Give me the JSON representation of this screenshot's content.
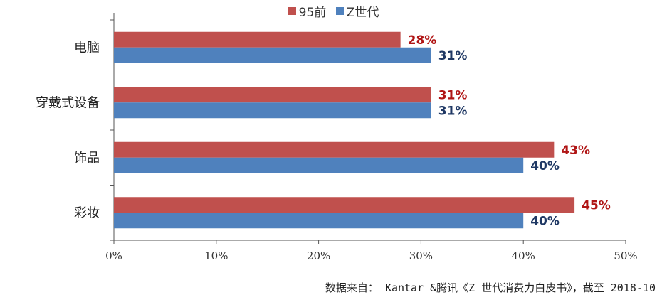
{
  "chart_data": {
    "type": "bar",
    "orientation": "horizontal",
    "categories": [
      "电脑",
      "穿戴式设备",
      "饰品",
      "彩妆"
    ],
    "series": [
      {
        "name": "95前",
        "values": [
          28,
          31,
          43,
          45
        ],
        "labels": [
          "28%",
          "31%",
          "43%",
          "45%"
        ],
        "color": "#c0504d",
        "label_color": "#b01515"
      },
      {
        "name": "Z世代",
        "values": [
          31,
          31,
          40,
          40
        ],
        "labels": [
          "31%",
          "31%",
          "40%",
          "40%"
        ],
        "color": "#4f81bd",
        "label_color": "#1f3864"
      }
    ],
    "x_ticks": [
      "0%",
      "10%",
      "20%",
      "30%",
      "40%",
      "50%"
    ],
    "xlim": [
      0,
      50
    ],
    "grid": false,
    "legend_position": "top-center"
  },
  "source_note": "数据来自： Kantar &腾讯《Z 世代消费力白皮书》，截至 2018-10"
}
